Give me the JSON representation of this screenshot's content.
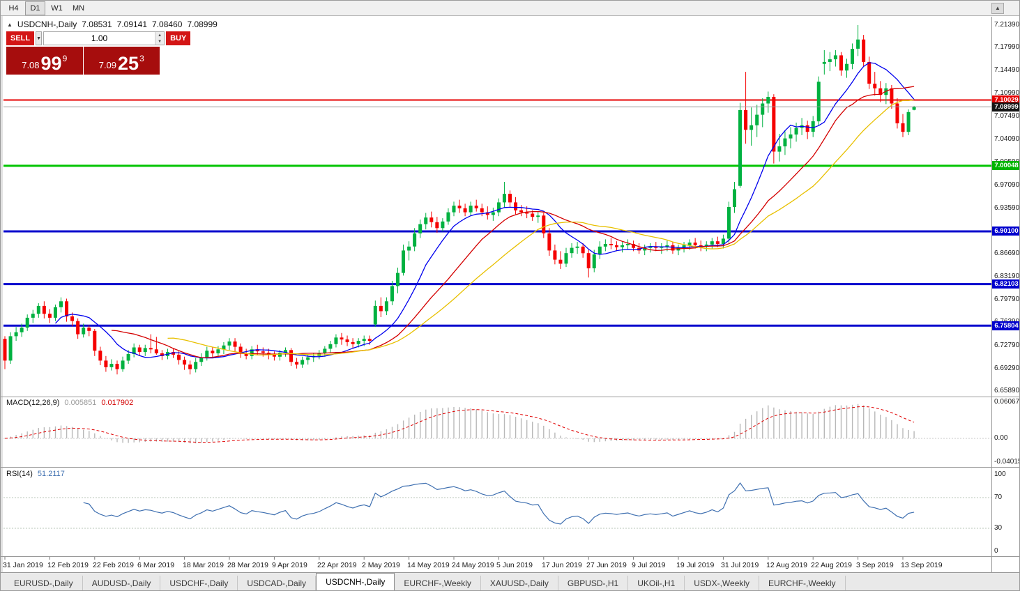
{
  "toolbar": {
    "timeframes": [
      "H4",
      "D1",
      "W1",
      "MN"
    ],
    "active": "D1"
  },
  "icons": {
    "collapse": "▲",
    "scroll_end": "▲",
    "dropdown": "▼",
    "spin_up": "▲",
    "spin_down": "▼"
  },
  "chart": {
    "title_symbol": "USDCNH-,Daily",
    "ohlc": {
      "open": "7.08531",
      "high": "7.09141",
      "low": "7.08460",
      "close": "7.08999"
    },
    "trade_panel": {
      "sell_label": "SELL",
      "buy_label": "BUY",
      "volume": "1.00",
      "sell_price": {
        "big": "7.08",
        "pips": "99",
        "pipette": "9"
      },
      "buy_price": {
        "big": "7.09",
        "pips": "25",
        "pipette": "3"
      }
    }
  },
  "chart_data": {
    "type": "candlestick",
    "symbol": "USDCNH-",
    "timeframe": "Daily",
    "colors": {
      "bull": "#00b140",
      "bear": "#f50000"
    },
    "candles": [
      [
        6.738,
        6.742,
        6.692,
        6.705
      ],
      [
        6.705,
        6.748,
        6.7,
        6.742
      ],
      [
        6.742,
        6.756,
        6.735,
        6.748
      ],
      [
        6.748,
        6.761,
        6.741,
        6.755
      ],
      [
        6.755,
        6.775,
        6.75,
        6.77
      ],
      [
        6.77,
        6.782,
        6.762,
        6.776
      ],
      [
        6.776,
        6.792,
        6.77,
        6.788
      ],
      [
        6.788,
        6.795,
        6.769,
        6.776
      ],
      [
        6.776,
        6.783,
        6.762,
        6.77
      ],
      [
        6.77,
        6.79,
        6.765,
        6.786
      ],
      [
        6.786,
        6.801,
        6.778,
        6.795
      ],
      [
        6.795,
        6.799,
        6.764,
        6.772
      ],
      [
        6.772,
        6.778,
        6.757,
        6.765
      ],
      [
        6.765,
        6.769,
        6.738,
        6.745
      ],
      [
        6.745,
        6.761,
        6.74,
        6.755
      ],
      [
        6.755,
        6.759,
        6.742,
        6.75
      ],
      [
        6.75,
        6.753,
        6.712,
        6.72
      ],
      [
        6.72,
        6.726,
        6.698,
        6.705
      ],
      [
        6.705,
        6.712,
        6.688,
        6.695
      ],
      [
        6.695,
        6.707,
        6.69,
        6.7
      ],
      [
        6.7,
        6.705,
        6.684,
        6.692
      ],
      [
        6.692,
        6.711,
        6.688,
        6.705
      ],
      [
        6.705,
        6.721,
        6.7,
        6.715
      ],
      [
        6.715,
        6.731,
        6.71,
        6.725
      ],
      [
        6.725,
        6.729,
        6.712,
        6.718
      ],
      [
        6.718,
        6.729,
        6.712,
        6.724
      ],
      [
        6.724,
        6.745,
        6.716,
        6.722
      ],
      [
        6.722,
        6.741,
        6.714,
        6.716
      ],
      [
        6.716,
        6.721,
        6.706,
        6.712
      ],
      [
        6.712,
        6.723,
        6.707,
        6.718
      ],
      [
        6.718,
        6.723,
        6.709,
        6.714
      ],
      [
        6.714,
        6.719,
        6.699,
        6.706
      ],
      [
        6.706,
        6.711,
        6.691,
        6.699
      ],
      [
        6.699,
        6.705,
        6.684,
        6.692
      ],
      [
        6.692,
        6.709,
        6.687,
        6.703
      ],
      [
        6.703,
        6.716,
        6.697,
        6.71
      ],
      [
        6.71,
        6.726,
        6.705,
        6.72
      ],
      [
        6.72,
        6.725,
        6.709,
        6.716
      ],
      [
        6.716,
        6.727,
        6.711,
        6.722
      ],
      [
        6.722,
        6.733,
        6.715,
        6.728
      ],
      [
        6.728,
        6.739,
        6.721,
        6.734
      ],
      [
        6.734,
        6.739,
        6.719,
        6.726
      ],
      [
        6.726,
        6.731,
        6.709,
        6.716
      ],
      [
        6.716,
        6.723,
        6.707,
        6.712
      ],
      [
        6.712,
        6.727,
        6.707,
        6.722
      ],
      [
        6.722,
        6.729,
        6.713,
        6.719
      ],
      [
        6.719,
        6.725,
        6.711,
        6.717
      ],
      [
        6.717,
        6.723,
        6.707,
        6.714
      ],
      [
        6.714,
        6.719,
        6.705,
        6.711
      ],
      [
        6.711,
        6.721,
        6.705,
        6.717
      ],
      [
        6.717,
        6.725,
        6.711,
        6.721
      ],
      [
        6.721,
        6.724,
        6.697,
        6.703
      ],
      [
        6.703,
        6.709,
        6.693,
        6.699
      ],
      [
        6.699,
        6.711,
        6.694,
        6.706
      ],
      [
        6.706,
        6.715,
        6.699,
        6.71
      ],
      [
        6.71,
        6.717,
        6.703,
        6.712
      ],
      [
        6.712,
        6.721,
        6.707,
        6.716
      ],
      [
        6.716,
        6.727,
        6.711,
        6.723
      ],
      [
        6.723,
        6.735,
        6.717,
        6.73
      ],
      [
        6.73,
        6.745,
        6.725,
        6.74
      ],
      [
        6.74,
        6.747,
        6.729,
        6.737
      ],
      [
        6.737,
        6.743,
        6.727,
        6.733
      ],
      [
        6.733,
        6.739,
        6.723,
        6.73
      ],
      [
        6.73,
        6.739,
        6.725,
        6.735
      ],
      [
        6.735,
        6.743,
        6.727,
        6.738
      ],
      [
        6.738,
        6.743,
        6.729,
        6.735
      ],
      [
        6.76,
        6.796,
        6.756,
        6.788
      ],
      [
        6.788,
        6.801,
        6.771,
        6.78
      ],
      [
        6.78,
        6.801,
        6.774,
        6.795
      ],
      [
        6.795,
        6.826,
        6.789,
        6.818
      ],
      [
        6.818,
        6.846,
        6.807,
        6.838
      ],
      [
        6.838,
        6.881,
        6.834,
        6.872
      ],
      [
        6.872,
        6.886,
        6.857,
        6.878
      ],
      [
        6.878,
        6.906,
        6.871,
        6.898
      ],
      [
        6.898,
        6.919,
        6.891,
        6.912
      ],
      [
        6.912,
        6.929,
        6.904,
        6.922
      ],
      [
        6.922,
        6.931,
        6.907,
        6.915
      ],
      [
        6.915,
        6.923,
        6.899,
        6.906
      ],
      [
        6.906,
        6.921,
        6.901,
        6.916
      ],
      [
        6.916,
        6.936,
        6.911,
        6.93
      ],
      [
        6.93,
        6.946,
        6.924,
        6.94
      ],
      [
        6.94,
        6.949,
        6.929,
        6.936
      ],
      [
        6.936,
        6.943,
        6.924,
        6.93
      ],
      [
        6.93,
        6.946,
        6.925,
        6.94
      ],
      [
        6.94,
        6.949,
        6.931,
        6.936
      ],
      [
        6.936,
        6.943,
        6.924,
        6.93
      ],
      [
        6.93,
        6.939,
        6.919,
        6.926
      ],
      [
        6.926,
        6.937,
        6.917,
        6.93
      ],
      [
        6.93,
        6.951,
        6.924,
        6.945
      ],
      [
        6.945,
        6.976,
        6.937,
        6.958
      ],
      [
        6.958,
        6.963,
        6.937,
        6.945
      ],
      [
        6.945,
        6.953,
        6.927,
        6.933
      ],
      [
        6.933,
        6.941,
        6.924,
        6.93
      ],
      [
        6.93,
        6.939,
        6.921,
        6.928
      ],
      [
        6.928,
        6.933,
        6.917,
        6.923
      ],
      [
        6.923,
        6.931,
        6.914,
        6.925
      ],
      [
        6.925,
        6.929,
        6.891,
        6.898
      ],
      [
        6.898,
        6.906,
        6.864,
        6.872
      ],
      [
        6.872,
        6.881,
        6.851,
        6.858
      ],
      [
        6.858,
        6.871,
        6.844,
        6.852
      ],
      [
        6.852,
        6.876,
        6.847,
        6.868
      ],
      [
        6.868,
        6.883,
        6.861,
        6.876
      ],
      [
        6.876,
        6.885,
        6.867,
        6.878
      ],
      [
        6.878,
        6.883,
        6.861,
        6.868
      ],
      [
        6.868,
        6.873,
        6.831,
        6.845
      ],
      [
        6.845,
        6.873,
        6.839,
        6.866
      ],
      [
        6.866,
        6.886,
        6.859,
        6.878
      ],
      [
        6.878,
        6.889,
        6.871,
        6.882
      ],
      [
        6.882,
        6.891,
        6.874,
        6.88
      ],
      [
        6.88,
        6.886,
        6.871,
        6.877
      ],
      [
        6.877,
        6.885,
        6.869,
        6.88
      ],
      [
        6.88,
        6.889,
        6.873,
        6.882
      ],
      [
        6.882,
        6.887,
        6.871,
        6.876
      ],
      [
        6.876,
        6.883,
        6.867,
        6.872
      ],
      [
        6.872,
        6.881,
        6.865,
        6.876
      ],
      [
        6.876,
        6.883,
        6.869,
        6.878
      ],
      [
        6.878,
        6.885,
        6.871,
        6.876
      ],
      [
        6.876,
        6.883,
        6.867,
        6.878
      ],
      [
        6.878,
        6.887,
        6.871,
        6.88
      ],
      [
        6.88,
        6.885,
        6.867,
        6.872
      ],
      [
        6.872,
        6.881,
        6.865,
        6.876
      ],
      [
        6.876,
        6.885,
        6.869,
        6.88
      ],
      [
        6.88,
        6.889,
        6.873,
        6.884
      ],
      [
        6.884,
        6.891,
        6.875,
        6.88
      ],
      [
        6.88,
        6.887,
        6.871,
        6.878
      ],
      [
        6.878,
        6.886,
        6.871,
        6.881
      ],
      [
        6.881,
        6.891,
        6.875,
        6.886
      ],
      [
        6.886,
        6.893,
        6.877,
        6.882
      ],
      [
        6.882,
        6.896,
        6.875,
        6.89
      ],
      [
        6.89,
        6.946,
        6.884,
        6.938
      ],
      [
        6.938,
        6.976,
        6.929,
        6.965
      ],
      [
        6.97,
        7.096,
        6.967,
        7.085
      ],
      [
        7.085,
        7.143,
        7.034,
        7.055
      ],
      [
        7.055,
        7.089,
        7.031,
        7.062
      ],
      [
        7.062,
        7.093,
        7.044,
        7.078
      ],
      [
        7.078,
        7.103,
        7.059,
        7.095
      ],
      [
        7.095,
        7.113,
        7.081,
        7.105
      ],
      [
        7.105,
        7.109,
        7.004,
        7.022
      ],
      [
        7.022,
        7.049,
        7.007,
        7.03
      ],
      [
        7.03,
        7.053,
        7.017,
        7.042
      ],
      [
        7.042,
        7.059,
        7.027,
        7.048
      ],
      [
        7.048,
        7.066,
        7.037,
        7.058
      ],
      [
        7.058,
        7.073,
        7.047,
        7.062
      ],
      [
        7.062,
        7.069,
        7.041,
        7.052
      ],
      [
        7.052,
        7.076,
        7.044,
        7.068
      ],
      [
        7.068,
        7.136,
        7.061,
        7.128
      ],
      [
        7.155,
        7.176,
        7.139,
        7.158
      ],
      [
        7.158,
        7.173,
        7.144,
        7.162
      ],
      [
        7.162,
        7.176,
        7.151,
        7.168
      ],
      [
        7.168,
        7.173,
        7.137,
        7.145
      ],
      [
        7.145,
        7.163,
        7.134,
        7.155
      ],
      [
        7.155,
        7.186,
        7.147,
        7.178
      ],
      [
        7.178,
        7.214,
        7.167,
        7.192
      ],
      [
        7.192,
        7.199,
        7.151,
        7.158
      ],
      [
        7.158,
        7.166,
        7.117,
        7.125
      ],
      [
        7.125,
        7.143,
        7.107,
        7.118
      ],
      [
        7.118,
        7.129,
        7.097,
        7.108
      ],
      [
        7.108,
        7.126,
        7.094,
        7.118
      ],
      [
        7.118,
        7.123,
        7.087,
        7.095
      ],
      [
        7.095,
        7.103,
        7.057,
        7.065
      ],
      [
        7.065,
        7.079,
        7.044,
        7.052
      ],
      [
        7.052,
        7.086,
        7.047,
        7.082
      ],
      [
        7.08531,
        7.09141,
        7.0846,
        7.08999
      ]
    ],
    "moving_averages": [
      {
        "period": 10,
        "type": "sma",
        "color": "#0000ee"
      },
      {
        "period": 20,
        "type": "sma",
        "color": "#d40000"
      },
      {
        "period": 30,
        "type": "sma",
        "color": "#e8c000"
      }
    ],
    "levels": [
      {
        "label": "7.10029",
        "price": 7.10029,
        "line_color": "#e60000",
        "badge_color": "#e60000",
        "width": 2
      },
      {
        "label": "7.08999",
        "price": 7.08999,
        "line_color": "#9a9a9a",
        "badge_color": "#151515",
        "width": 1
      },
      {
        "label": "7.00048",
        "price": 7.00048,
        "line_color": "#00c400",
        "badge_color": "#00b400",
        "width": 3
      },
      {
        "label": "6.90100",
        "price": 6.901,
        "line_color": "#0000cd",
        "badge_color": "#0000cd",
        "width": 3
      },
      {
        "label": "6.82103",
        "price": 6.82103,
        "line_color": "#0000cd",
        "badge_color": "#0000cd",
        "width": 3
      },
      {
        "label": "6.75804",
        "price": 6.75804,
        "line_color": "#0000cd",
        "badge_color": "#0000cd",
        "width": 3
      }
    ],
    "price_axis": [
      {
        "t": "7.21390",
        "p": 7.2139
      },
      {
        "t": "7.17990",
        "p": 7.1799
      },
      {
        "t": "7.14490",
        "p": 7.1449
      },
      {
        "t": "7.10990",
        "p": 7.1099
      },
      {
        "t": "7.07490",
        "p": 7.0749
      },
      {
        "t": "7.04090",
        "p": 7.0409
      },
      {
        "t": "7.00590",
        "p": 7.0059
      },
      {
        "t": "6.97090",
        "p": 6.9709
      },
      {
        "t": "6.93590",
        "p": 6.9359
      },
      {
        "t": "6.90190",
        "p": 6.9019
      },
      {
        "t": "6.86690",
        "p": 6.8669
      },
      {
        "t": "6.83190",
        "p": 6.8319
      },
      {
        "t": "6.79790",
        "p": 6.7979
      },
      {
        "t": "6.76390",
        "p": 6.7639
      },
      {
        "t": "6.72790",
        "p": 6.7279
      },
      {
        "t": "6.69290",
        "p": 6.6929
      },
      {
        "t": "6.65890",
        "p": 6.6589
      }
    ],
    "date_ticks": [
      {
        "label": "31 Jan 2019",
        "i": 0
      },
      {
        "label": "12 Feb 2019",
        "i": 8
      },
      {
        "label": "22 Feb 2019",
        "i": 16
      },
      {
        "label": "6 Mar 2019",
        "i": 24
      },
      {
        "label": "18 Mar 2019",
        "i": 32
      },
      {
        "label": "28 Mar 2019",
        "i": 40
      },
      {
        "label": "9 Apr 2019",
        "i": 48
      },
      {
        "label": "22 Apr 2019",
        "i": 56
      },
      {
        "label": "2 May 2019",
        "i": 64
      },
      {
        "label": "14 May 2019",
        "i": 72
      },
      {
        "label": "24 May 2019",
        "i": 80
      },
      {
        "label": "5 Jun 2019",
        "i": 88
      },
      {
        "label": "17 Jun 2019",
        "i": 96
      },
      {
        "label": "27 Jun 2019",
        "i": 104
      },
      {
        "label": "9 Jul 2019",
        "i": 112
      },
      {
        "label": "19 Jul 2019",
        "i": 120
      },
      {
        "label": "31 Jul 2019",
        "i": 128
      },
      {
        "label": "12 Aug 2019",
        "i": 136
      },
      {
        "label": "22 Aug 2019",
        "i": 144
      },
      {
        "label": "3 Sep 2019",
        "i": 152
      },
      {
        "label": "13 Sep 2019",
        "i": 160
      }
    ],
    "indicators": {
      "macd": {
        "label": "MACD(12,26,9)",
        "value": "0.005851",
        "signal_value": "0.017902",
        "fast": 12,
        "slow": 26,
        "signal": 9,
        "histogram_color": "#b8b8b8",
        "signal_color": "#e00000",
        "axis": [
          {
            "t": "0.060674",
            "v": 0.060674
          },
          {
            "t": "0.00",
            "v": 0
          },
          {
            "t": "-0.040152",
            "v": -0.040152
          }
        ]
      },
      "rsi": {
        "label": "RSI(14)",
        "value": "51.2117",
        "period": 14,
        "line_color": "#3e6fb0",
        "levels": [
          70,
          30
        ],
        "axis": [
          {
            "t": "100",
            "v": 100
          },
          {
            "t": "70",
            "v": 70
          },
          {
            "t": "30",
            "v": 30
          },
          {
            "t": "0",
            "v": 0
          }
        ]
      }
    }
  },
  "tabbar": {
    "tabs": [
      {
        "label": "EURUSD-,Daily",
        "active": false
      },
      {
        "label": "AUDUSD-,Daily",
        "active": false
      },
      {
        "label": "USDCHF-,Daily",
        "active": false
      },
      {
        "label": "USDCAD-,Daily",
        "active": false
      },
      {
        "label": "USDCNH-,Daily",
        "active": true
      },
      {
        "label": "EURCHF-,Weekly",
        "active": false
      },
      {
        "label": "XAUUSD-,Daily",
        "active": false
      },
      {
        "label": "GBPUSD-,H1",
        "active": false
      },
      {
        "label": "UKOil-,H1",
        "active": false
      },
      {
        "label": "USDX-,Weekly",
        "active": false
      },
      {
        "label": "EURCHF-,Weekly",
        "active": false
      }
    ]
  }
}
